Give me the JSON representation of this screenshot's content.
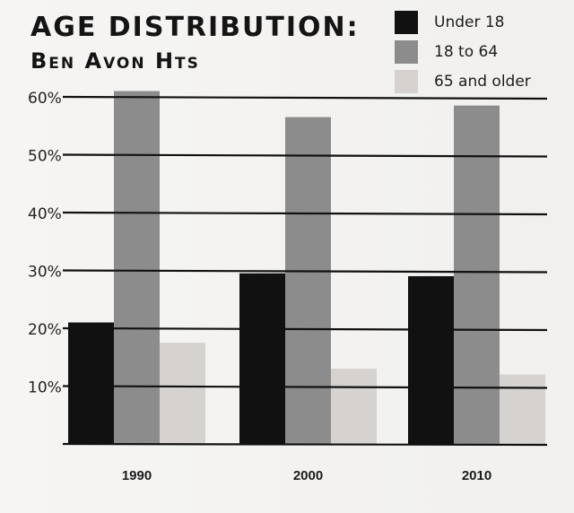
{
  "header": {
    "title_line1": "AGE DISTRIBUTION:",
    "title_line2": "Ben Avon Hts"
  },
  "legend": [
    {
      "label": "Under 18",
      "color": "#111111"
    },
    {
      "label": "18 to 64",
      "color": "#8c8c8c"
    },
    {
      "label": "65 and older",
      "color": "#d5d2cf"
    }
  ],
  "chart_data": {
    "type": "bar",
    "title": "AGE DISTRIBUTION: Ben Avon Hts",
    "categories": [
      "1990",
      "2000",
      "2010"
    ],
    "series": [
      {
        "name": "Under 18",
        "values": [
          21,
          29.5,
          29
        ]
      },
      {
        "name": "18 to 64",
        "values": [
          61,
          56.5,
          58.5
        ]
      },
      {
        "name": "65 and older",
        "values": [
          17.5,
          13,
          12
        ]
      }
    ],
    "ytick_labels": [
      "10%",
      "20%",
      "30%",
      "40%",
      "50%",
      "60%"
    ],
    "yticks": [
      10,
      20,
      30,
      40,
      50,
      60
    ],
    "ylim": [
      0,
      60
    ],
    "grid": true,
    "legend_position": "top-right",
    "colors": [
      "#111111",
      "#8c8c8c",
      "#d5d2cf"
    ]
  }
}
